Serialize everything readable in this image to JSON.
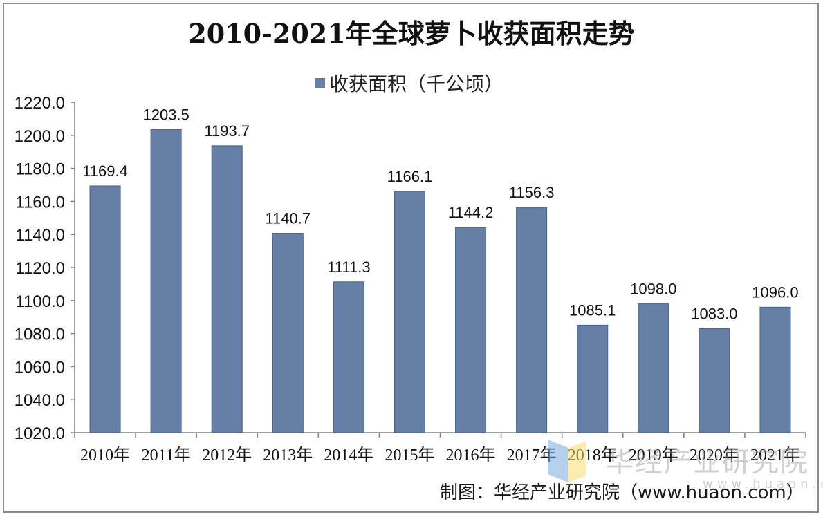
{
  "colors": {
    "bar": "#667fa6",
    "bar_edge": "#4a5f82",
    "axis": "#7f7f7f",
    "text": "#111111"
  },
  "chart_data": {
    "type": "bar",
    "title": "2010-2021年全球萝卜收获面积走势",
    "categories": [
      "2010年",
      "2011年",
      "2012年",
      "2013年",
      "2014年",
      "2015年",
      "2016年",
      "2017年",
      "2018年",
      "2019年",
      "2020年",
      "2021年"
    ],
    "series": [
      {
        "name": "收获面积（千公顷）",
        "values": [
          1169.4,
          1203.5,
          1193.7,
          1140.7,
          1111.3,
          1166.1,
          1144.2,
          1156.3,
          1085.1,
          1098.0,
          1083.0,
          1096.0
        ]
      }
    ],
    "ylim": [
      1020.0,
      1220.0
    ],
    "yticks": [
      "1020.0",
      "1040.0",
      "1060.0",
      "1080.0",
      "1100.0",
      "1120.0",
      "1140.0",
      "1160.0",
      "1180.0",
      "1200.0",
      "1220.0"
    ],
    "data_labels": [
      "1169.4",
      "1203.5",
      "1193.7",
      "1140.7",
      "1111.3",
      "1166.1",
      "1144.2",
      "1156.3",
      "1085.1",
      "1098.0",
      "1083.0",
      "1096.0"
    ],
    "grid": false,
    "legend_position": "top-center"
  },
  "source": "制图：华经产业研究院（www.huaon.com）",
  "watermark": {
    "cn": "华经产业研究院",
    "url": "www.huaon.com"
  }
}
